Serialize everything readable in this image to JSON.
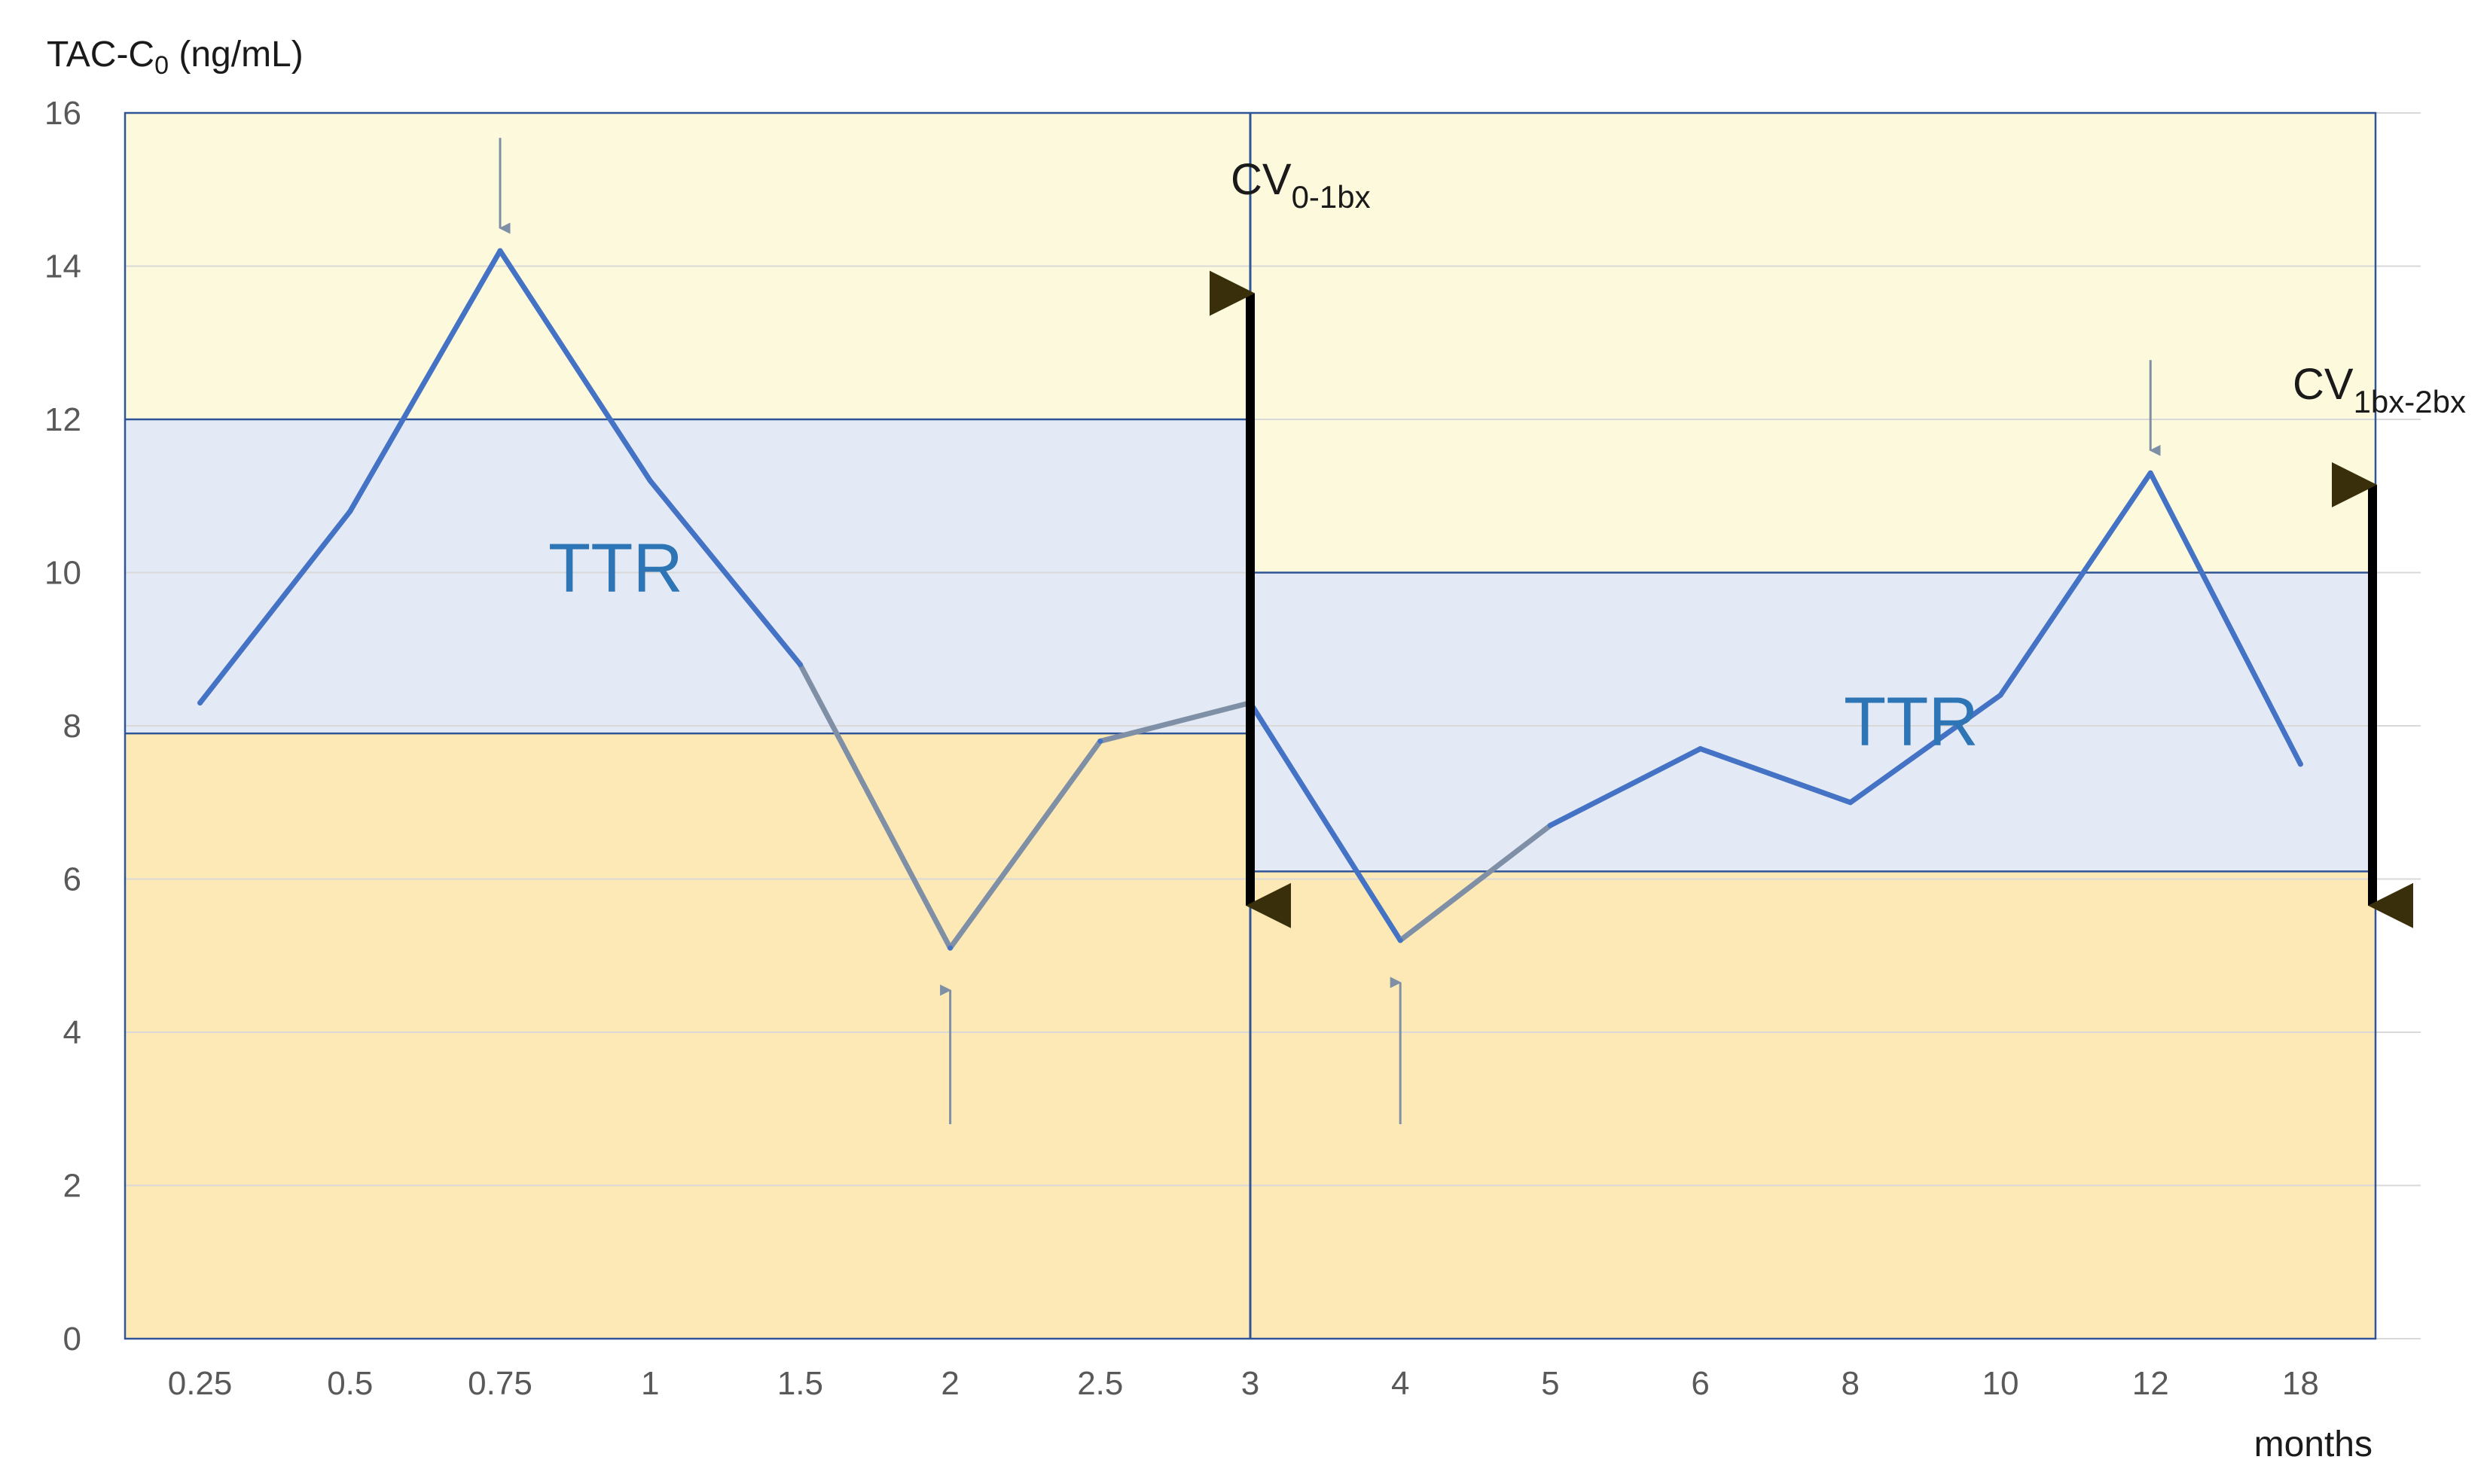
{
  "chart_data": {
    "type": "line",
    "ylabel_main": "TAC-C",
    "ylabel_sub": "0",
    "ylabel_unit": " (ng/mL)",
    "xlabel": "months",
    "ylim": [
      0,
      16
    ],
    "yticks": [
      "0",
      "2",
      "4",
      "6",
      "8",
      "10",
      "12",
      "14",
      "16"
    ],
    "categories": [
      "0.25",
      "0.5",
      "0.75",
      "1",
      "1.5",
      "2",
      "2.5",
      "3",
      "4",
      "5",
      "6",
      "8",
      "10",
      "12",
      "18"
    ],
    "values": [
      8.3,
      10.8,
      14.2,
      11.2,
      8.8,
      5.1,
      7.8,
      8.3,
      5.2,
      6.7,
      7.7,
      7.0,
      8.4,
      11.3,
      7.5
    ],
    "grid": true,
    "bands": [
      {
        "segment": "first",
        "from_category": "0.25",
        "to_category": "3",
        "target_low": 7.9,
        "target_high": 12.0
      },
      {
        "segment": "second",
        "from_category": "3",
        "to_category": "18",
        "target_low": 6.1,
        "target_high": 10.0
      }
    ],
    "band_colors": {
      "above": "#fdf9dc",
      "target": "#e4eaf5",
      "below": "#fde9b5",
      "border": "#2f5597"
    },
    "line_colors": {
      "in_range": "#4472c4",
      "out_of_range": "#7f8fa6"
    },
    "annotations": {
      "ttr_label": "TTR",
      "cv1_main": "CV",
      "cv1_sub": "0-1bx",
      "cv1_range": [
        5.3,
        14.0
      ],
      "cv2_main": "CV",
      "cv2_sub": "1bx-2bx",
      "cv2_range": [
        5.3,
        11.5
      ],
      "peak_markers": [
        "0.75",
        "12"
      ],
      "trough_markers": [
        "2",
        "4"
      ]
    }
  }
}
